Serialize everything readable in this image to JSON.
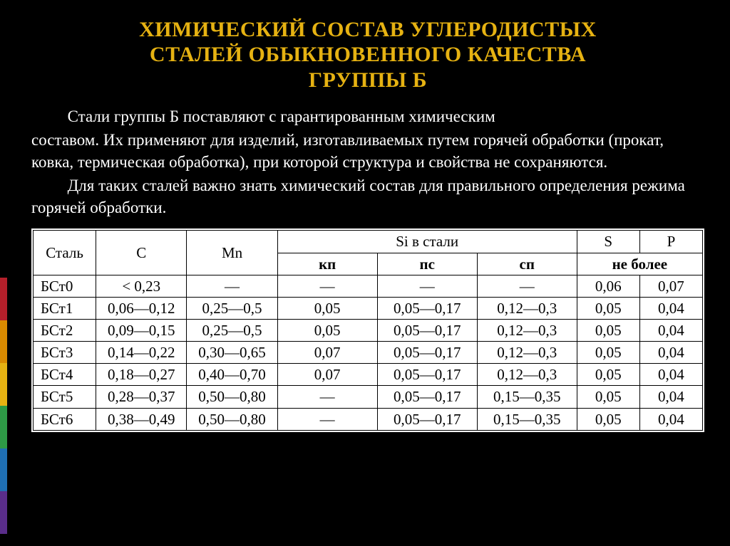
{
  "title_lines": [
    "ХИМИЧЕСКИЙ СОСТАВ УГЛЕРОДИСТЫХ",
    "СТАЛЕЙ ОБЫКНОВЕННОГО КАЧЕСТВА",
    "ГРУППЫ Б"
  ],
  "title_color": "#e6b212",
  "title_fontsize": 30,
  "paragraphs": [
    {
      "indent": true,
      "text": "Стали группы Б поставляют с гарантированным химическим"
    },
    {
      "indent": false,
      "text": "составом. Их применяют для изделий, изготавливаемых путем горячей обработки (прокат, ковка, термическая обработка), при которой структура и свойства не сохраняются."
    },
    {
      "indent": true,
      "text": "Для таких сталей важно знать химический состав для правильного определения режима горячей обработки."
    }
  ],
  "accent_colors": [
    "#b31f2a",
    "#d98a00",
    "#e6b212",
    "#2e9a46",
    "#1f6fb3",
    "#5a2d8a"
  ],
  "table": {
    "background_color": "#ffffff",
    "border_color": "#000000",
    "header": {
      "steel": "Сталь",
      "c": "C",
      "mn": "Mn",
      "si_group": "Si в стали",
      "si_cols": [
        "кп",
        "пс",
        "сп"
      ],
      "s": "S",
      "p": "P",
      "sp_sub": "не более"
    },
    "rows": [
      {
        "steel": "БСт0",
        "c": "< 0,23",
        "mn": "—",
        "kp": "—",
        "ps": "—",
        "sp": "—",
        "s": "0,06",
        "p": "0,07"
      },
      {
        "steel": "БСт1",
        "c": "0,06—0,12",
        "mn": "0,25—0,5",
        "kp": "0,05",
        "ps": "0,05—0,17",
        "sp": "0,12—0,3",
        "s": "0,05",
        "p": "0,04"
      },
      {
        "steel": "БСт2",
        "c": "0,09—0,15",
        "mn": "0,25—0,5",
        "kp": "0,05",
        "ps": "0,05—0,17",
        "sp": "0,12—0,3",
        "s": "0,05",
        "p": "0,04"
      },
      {
        "steel": "БСт3",
        "c": "0,14—0,22",
        "mn": "0,30—0,65",
        "kp": "0,07",
        "ps": "0,05—0,17",
        "sp": "0,12—0,3",
        "s": "0,05",
        "p": "0,04"
      },
      {
        "steel": "БСт4",
        "c": "0,18—0,27",
        "mn": "0,40—0,70",
        "kp": "0,07",
        "ps": "0,05—0,17",
        "sp": "0,12—0,3",
        "s": "0,05",
        "p": "0,04"
      },
      {
        "steel": "БСт5",
        "c": "0,28—0,37",
        "mn": "0,50—0,80",
        "kp": "—",
        "ps": "0,05—0,17",
        "sp": "0,15—0,35",
        "s": "0,05",
        "p": "0,04"
      },
      {
        "steel": "БСт6",
        "c": "0,38—0,49",
        "mn": "0,50—0,80",
        "kp": "—",
        "ps": "0,05—0,17",
        "sp": "0,15—0,35",
        "s": "0,05",
        "p": "0,04"
      }
    ]
  }
}
